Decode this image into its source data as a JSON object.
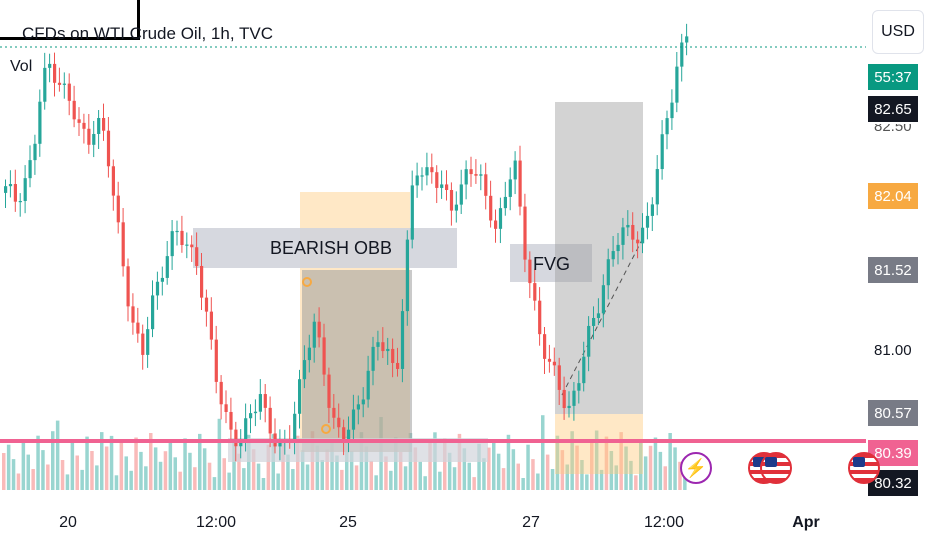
{
  "symbol": {
    "title": "CFDs on WTI Crude Oil, 1h, TVC",
    "volume_label": "Vol"
  },
  "currency_button": "USD",
  "price_axis": {
    "tags": [
      {
        "text": "55:37",
        "color": "#089981"
      },
      {
        "text": "82.65",
        "color": "#131722"
      },
      {
        "text": "82.04",
        "color": "#f7a941"
      },
      {
        "text": "81.52",
        "color": "#787b86"
      },
      {
        "text": "80.57",
        "color": "#787b86"
      },
      {
        "text": "80.39",
        "color": "#f06292"
      },
      {
        "text": "80.32",
        "color": "#131722"
      }
    ],
    "partial_label": "82.50",
    "plain_labels": [
      "81.00"
    ]
  },
  "time_axis": {
    "labels": [
      {
        "text": "20",
        "bold": false
      },
      {
        "text": "12:00",
        "bold": false
      },
      {
        "text": "25",
        "bold": false
      },
      {
        "text": "27",
        "bold": false
      },
      {
        "text": "12:00",
        "bold": false
      },
      {
        "text": "Apr",
        "bold": true
      }
    ]
  },
  "annotations": {
    "bearish_obb": "BEARISH OBB",
    "fvg": "FVG"
  },
  "events": [
    {
      "icon": "lightning-icon"
    },
    {
      "icon": "us-flag-icon"
    },
    {
      "icon": "us-flag-icon"
    },
    {
      "icon": "us-flag-icon"
    }
  ],
  "colors": {
    "up": "#26a69a",
    "down": "#ef5350",
    "support_line": "#f06292",
    "zone_gray": "#9e9e9e",
    "zone_orange": "#ffcc80"
  },
  "chart_data": {
    "type": "candlestick",
    "symbol": "CFDs on WTI Crude Oil, 1h, TVC",
    "price_range": [
      80.25,
      83.05
    ],
    "x_ticks": [
      "20",
      "12:00",
      "25",
      "27",
      "12:00",
      "Apr"
    ],
    "key_levels": [
      82.65,
      82.04,
      81.52,
      80.57,
      80.39,
      80.32
    ],
    "zones": [
      {
        "label": "BEARISH OBB",
        "price_top": 81.85,
        "price_bottom": 81.62
      },
      {
        "label": "FVG",
        "price_top": 81.6,
        "price_bottom": 81.39
      }
    ],
    "closes": [
      82.02,
      81.98,
      82.1,
      82.22,
      82.65,
      82.8,
      82.7,
      82.55,
      82.4,
      82.35,
      82.48,
      82.3,
      81.95,
      81.6,
      81.25,
      81.0,
      81.35,
      81.55,
      81.7,
      81.75,
      81.72,
      81.65,
      81.3,
      80.95,
      80.75,
      80.6,
      80.5,
      80.7,
      80.85,
      80.65,
      80.45,
      80.52,
      80.8,
      81.05,
      81.2,
      81.0,
      80.7,
      80.55,
      80.6,
      80.8,
      81.0,
      81.12,
      81.05,
      80.95,
      81.55,
      82.15,
      82.1,
      82.2,
      82.05,
      81.9,
      82.0,
      82.25,
      82.1,
      81.95,
      81.8,
      82.05,
      82.2,
      81.7,
      81.45,
      81.15,
      80.95,
      80.85,
      80.75,
      80.9,
      81.1,
      81.3,
      81.55,
      81.7,
      81.75,
      81.8,
      81.78,
      81.9,
      82.2,
      82.55,
      82.8,
      82.95
    ]
  }
}
